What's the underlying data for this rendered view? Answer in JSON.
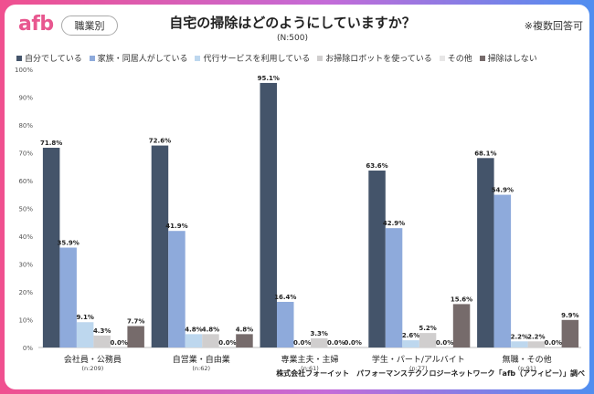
{
  "logo": "afb",
  "badge": "職業別",
  "title": "自宅の掃除はどのようにしていますか？",
  "subtitle": "(N:500)",
  "note": "※複数回答可",
  "footer": "株式会社フォーイット　パフォーマンステクノロジーネットワーク「afb（アフィビー）」調べ",
  "chart_data": {
    "type": "bar",
    "title": "自宅の掃除はどのようにしていますか？",
    "ylim": [
      0,
      100
    ],
    "yticks": [
      "0%",
      "10%",
      "20%",
      "30%",
      "40%",
      "50%",
      "60%",
      "70%",
      "80%",
      "90%",
      "100%"
    ],
    "grid": false,
    "legend_position": "top",
    "categories": [
      "会社員・公務員",
      "自営業・自由業",
      "専業主夫・主婦",
      "学生・パート/アルバイト",
      "無職・その他"
    ],
    "category_n": [
      "(n:209)",
      "(n:62)",
      "(n:61)",
      "(n:77)",
      "(n:91)"
    ],
    "series": [
      {
        "name": "自分でしている",
        "color": "#44546a",
        "values": [
          71.8,
          72.6,
          95.1,
          63.6,
          68.1
        ],
        "labels": [
          "71.8%",
          "72.6%",
          "95.1%",
          "63.6%",
          "68.1%"
        ]
      },
      {
        "name": "家族・同居人がしている",
        "color": "#8eaadb",
        "values": [
          35.9,
          41.9,
          16.4,
          42.9,
          54.9
        ],
        "labels": [
          "35.9%",
          "41.9%",
          "16.4%",
          "42.9%",
          "54.9%"
        ]
      },
      {
        "name": "代行サービスを利用している",
        "color": "#bdd7ee",
        "values": [
          9.1,
          4.8,
          0.0,
          2.6,
          2.2
        ],
        "labels": [
          "9.1%",
          "4.8%",
          "0.0%",
          "2.6%",
          "2.2%"
        ]
      },
      {
        "name": "お掃除ロボットを使っている",
        "color": "#d0cece",
        "values": [
          4.3,
          4.8,
          3.3,
          5.2,
          2.2
        ],
        "labels": [
          "4.3%",
          "4.8%",
          "3.3%",
          "5.2%",
          "2.2%"
        ]
      },
      {
        "name": "その他",
        "color": "#e7e6e6",
        "values": [
          0.0,
          0.0,
          0.0,
          0.0,
          0.0
        ],
        "labels": [
          "0.0%",
          "0.0%",
          "0.0%",
          "0.0%",
          "0.0%"
        ]
      },
      {
        "name": "掃除はしない",
        "color": "#766b6b",
        "values": [
          7.7,
          4.8,
          0.0,
          15.6,
          9.9
        ],
        "labels": [
          "7.7%",
          "4.8%",
          "0.0%",
          "15.6%",
          "9.9%"
        ]
      }
    ]
  }
}
